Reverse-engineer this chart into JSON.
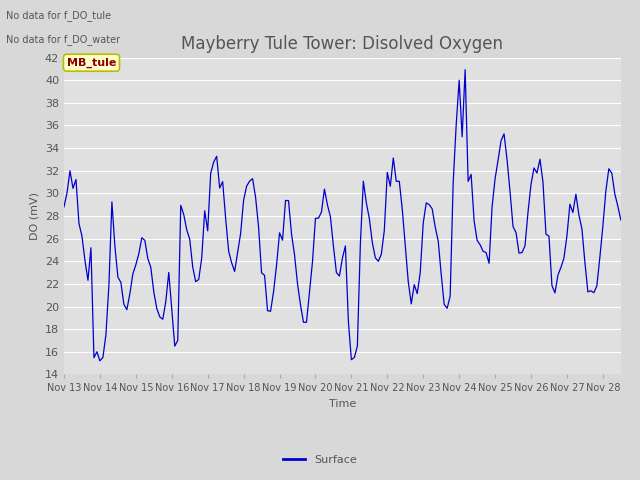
{
  "title": "Mayberry Tule Tower: Disolved Oxygen",
  "ylabel": "DO (mV)",
  "xlabel": "Time",
  "annotation1": "No data for f_DO_tule",
  "annotation2": "No data for f_DO_water",
  "legend_label": "Surface",
  "legend_label2": "MB_tule",
  "line_color": "#0000cc",
  "ylim": [
    14,
    42
  ],
  "yticks": [
    14,
    16,
    18,
    20,
    22,
    24,
    26,
    28,
    30,
    32,
    34,
    36,
    38,
    40,
    42
  ],
  "background_color": "#d8d8d8",
  "plot_bg_color": "#e0e0e0",
  "grid_color": "#ffffff",
  "axis_color": "#555555",
  "text_fontsize": 8,
  "title_fontsize": 12
}
